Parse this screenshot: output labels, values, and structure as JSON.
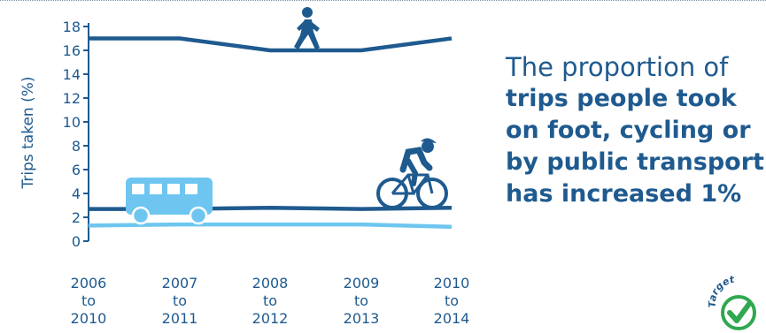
{
  "chart_data": {
    "type": "line",
    "ylabel": "Trips taken (%)",
    "ylim": [
      0,
      18
    ],
    "y_ticks": [
      0,
      2,
      4,
      6,
      8,
      10,
      12,
      14,
      16,
      18
    ],
    "categories": [
      [
        "2006",
        "to",
        "2010"
      ],
      [
        "2007",
        "to",
        "2011"
      ],
      [
        "2008",
        "to",
        "2012"
      ],
      [
        "2009",
        "to",
        "2013"
      ],
      [
        "2010",
        "to",
        "2014"
      ]
    ],
    "series": [
      {
        "icon": "walking-person-icon",
        "color": "#1f5a8f",
        "values": [
          17.0,
          17.0,
          16.0,
          16.0,
          17.0
        ]
      },
      {
        "icon": "cyclist-icon",
        "color": "#1f5a8f",
        "values": [
          2.7,
          2.7,
          2.8,
          2.7,
          2.8
        ]
      },
      {
        "icon": "bus-icon",
        "color": "#6ec6f0",
        "values": [
          1.3,
          1.4,
          1.4,
          1.4,
          1.2
        ]
      }
    ],
    "grid": false
  },
  "headline": {
    "line1": "The proportion of",
    "bold_lines": [
      "trips people took",
      "on foot, cycling or",
      "by public transport",
      "has increased 1%"
    ]
  },
  "logo": {
    "text": "Target",
    "icon": "checkmark-icon",
    "color": "#2fa84f"
  }
}
